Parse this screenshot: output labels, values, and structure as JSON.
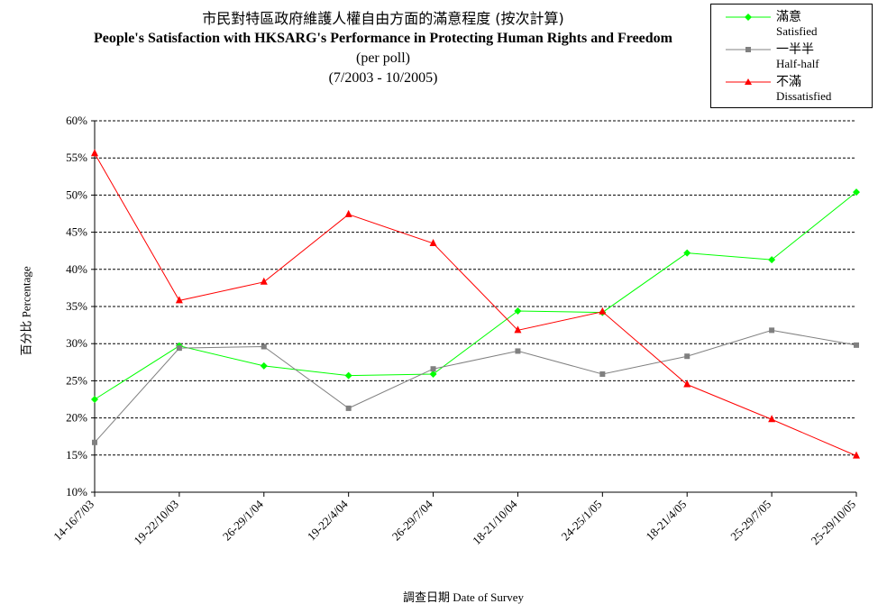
{
  "chart_data": {
    "type": "line",
    "title_cn": "市民對特區政府維護人權自由方面的滿意程度 (按次計算)",
    "title_en": "People's Satisfaction with HKSARG's Performance in Protecting Human Rights and Freedom",
    "subtitle1": "(per poll)",
    "subtitle2": "(7/2003 -  10/2005)",
    "ylabel_cn": "百分比",
    "ylabel_en": "Percentage",
    "xlabel_cn": "調查日期",
    "xlabel_en": "Date of Survey",
    "ylim": [
      10,
      60
    ],
    "yticks": [
      "10%",
      "15%",
      "20%",
      "25%",
      "30%",
      "35%",
      "40%",
      "45%",
      "50%",
      "55%",
      "60%"
    ],
    "grid": true,
    "legend_position": "top-right",
    "categories": [
      "14-16/7/03",
      "19-22/10/03",
      "26-29/1/04",
      "19-22/4/04",
      "26-29/7/04",
      "18-21/10/04",
      "24-25/1/05",
      "18-21/4/05",
      "25-29/7/05",
      "25-29/10/05"
    ],
    "series": [
      {
        "name_cn": "滿意",
        "name_en": "Satisfied",
        "color": "#00ff00",
        "marker": "diamond",
        "values": [
          22.5,
          29.7,
          27.0,
          25.7,
          25.9,
          34.4,
          34.2,
          42.2,
          41.3,
          50.4
        ]
      },
      {
        "name_cn": "一半半",
        "name_en": "Half-half",
        "color": "#808080",
        "marker": "square",
        "values": [
          16.7,
          29.4,
          29.6,
          21.3,
          26.6,
          29.0,
          25.9,
          28.3,
          31.8,
          29.8
        ]
      },
      {
        "name_cn": "不滿",
        "name_en": "Dissatisfied",
        "color": "#ff0000",
        "marker": "triangle",
        "values": [
          55.6,
          35.8,
          38.3,
          47.4,
          43.5,
          31.8,
          34.3,
          24.5,
          19.8,
          14.9
        ]
      }
    ]
  }
}
